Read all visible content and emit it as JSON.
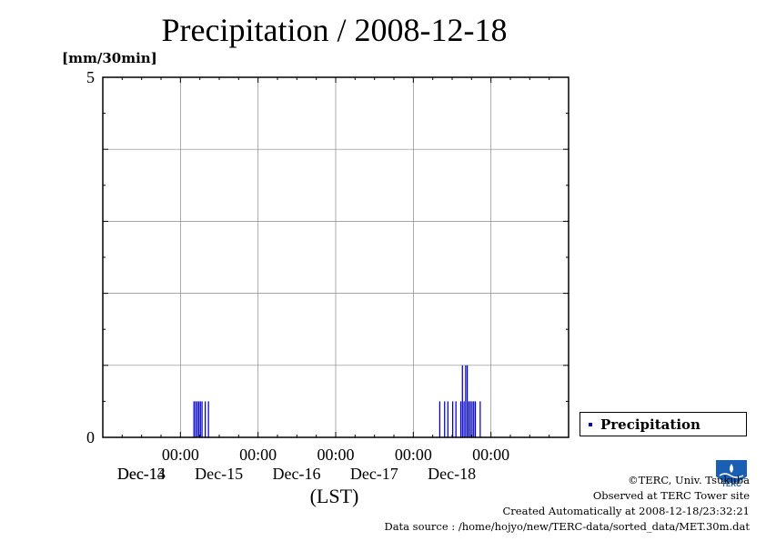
{
  "chart_data": {
    "type": "bar",
    "title": "Precipitation / 2008-12-18",
    "ylabel": "[mm/30min]",
    "xlabel": "(LST)",
    "ylim": [
      0,
      5
    ],
    "y_ticks": [
      {
        "value": 0,
        "label": "0"
      },
      {
        "value": 5,
        "label": "5"
      }
    ],
    "x_range_hours": [
      -24,
      120
    ],
    "x_ticks": [
      {
        "hour": 0,
        "time": "00:00",
        "date": "Dec-14"
      },
      {
        "hour": 24,
        "time": "00:00",
        "date": "Dec-15"
      },
      {
        "hour": 48,
        "time": "00:00",
        "date": "Dec-16"
      },
      {
        "hour": 72,
        "time": "00:00",
        "date": "Dec-17"
      },
      {
        "hour": 96,
        "time": "00:00",
        "date": "Dec-18"
      }
    ],
    "x_extra_labels": [
      {
        "hour": -12,
        "date": "Dec-13"
      }
    ],
    "grid": true,
    "legend_position": "right",
    "series": [
      {
        "name": "Precipitation",
        "color": "#0000cc",
        "bars": [
          {
            "hour": 4.0,
            "value": 0.5
          },
          {
            "hour": 4.5,
            "value": 0.5
          },
          {
            "hour": 5.0,
            "value": 0.5
          },
          {
            "hour": 5.5,
            "value": 0.5
          },
          {
            "hour": 6.0,
            "value": 0.5
          },
          {
            "hour": 6.5,
            "value": 0.5
          },
          {
            "hour": 7.5,
            "value": 0.5
          },
          {
            "hour": 8.5,
            "value": 0.5
          },
          {
            "hour": 80.0,
            "value": 0.5
          },
          {
            "hour": 81.5,
            "value": 0.5
          },
          {
            "hour": 82.5,
            "value": 0.5
          },
          {
            "hour": 84.0,
            "value": 0.5
          },
          {
            "hour": 85.0,
            "value": 0.5
          },
          {
            "hour": 86.5,
            "value": 0.5
          },
          {
            "hour": 87.0,
            "value": 1.0
          },
          {
            "hour": 87.5,
            "value": 0.5
          },
          {
            "hour": 88.0,
            "value": 1.0
          },
          {
            "hour": 88.5,
            "value": 1.0
          },
          {
            "hour": 89.0,
            "value": 0.5
          },
          {
            "hour": 89.5,
            "value": 0.5
          },
          {
            "hour": 90.0,
            "value": 0.5
          },
          {
            "hour": 90.5,
            "value": 0.5
          },
          {
            "hour": 91.0,
            "value": 0.5
          },
          {
            "hour": 92.5,
            "value": 0.5
          }
        ]
      }
    ]
  },
  "legend": {
    "label": "Precipitation"
  },
  "credits": {
    "line1": "©TERC, Univ. Tsukuba",
    "line2": "Observed at TERC Tower site",
    "line3": "Created Automatically at 2008-12-18/23:32:21",
    "line4": "Data source : /home/hojyo/new/TERC-data/sorted_data/MET.30m.dat"
  },
  "logo": {
    "text": "TERC",
    "color": "#1a5fb4"
  }
}
